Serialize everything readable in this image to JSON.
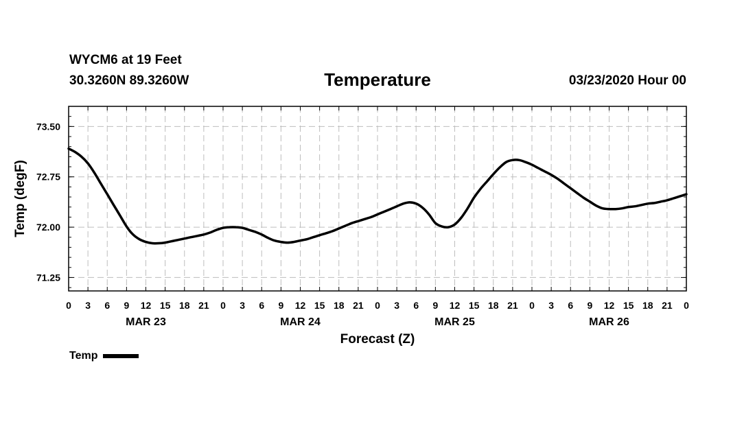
{
  "header": {
    "station": "WYCM6 at 19 Feet",
    "coords": "30.3260N 89.3260W",
    "title": "Temperature",
    "run": "03/23/2020 Hour 00"
  },
  "chart_data": {
    "type": "line",
    "title": "Temperature",
    "xlabel": "Forecast (Z)",
    "ylabel": "Temp (degF)",
    "x_unit": "hours since 03/23/2020 00Z",
    "xlim": [
      0,
      96
    ],
    "ylim": [
      71.05,
      73.8
    ],
    "yticks": [
      71.25,
      72.0,
      72.75,
      73.5
    ],
    "ytick_labels": [
      "71.25",
      "72.00",
      "72.75",
      "73.50"
    ],
    "xtick_labels": [
      "0",
      "3",
      "6",
      "9",
      "12",
      "15",
      "18",
      "21",
      "0",
      "3",
      "6",
      "9",
      "12",
      "15",
      "18",
      "21",
      "0",
      "3",
      "6",
      "9",
      "12",
      "15",
      "18",
      "21",
      "0",
      "3",
      "6",
      "9",
      "12",
      "15",
      "18",
      "21",
      "0"
    ],
    "day_labels": [
      {
        "label": "MAR 23",
        "hour": 12
      },
      {
        "label": "MAR 24",
        "hour": 36
      },
      {
        "label": "MAR 25",
        "hour": 60
      },
      {
        "label": "MAR 26",
        "hour": 84
      }
    ],
    "grid": true,
    "legend_position": "bottom-left",
    "series": [
      {
        "name": "Temp",
        "color": "#000000",
        "x": [
          0,
          1,
          2,
          3,
          4,
          5,
          6,
          7,
          8,
          9,
          10,
          11,
          12,
          13,
          14,
          15,
          16,
          17,
          18,
          19,
          20,
          21,
          22,
          23,
          24,
          25,
          26,
          27,
          28,
          29,
          30,
          31,
          32,
          33,
          34,
          35,
          36,
          37,
          38,
          39,
          40,
          41,
          42,
          43,
          44,
          45,
          46,
          47,
          48,
          49,
          50,
          51,
          52,
          53,
          54,
          55,
          56,
          57,
          58,
          59,
          60,
          61,
          62,
          63,
          64,
          65,
          66,
          67,
          68,
          69,
          70,
          71,
          72,
          73,
          74,
          75,
          76,
          77,
          78,
          79,
          80,
          81,
          82,
          83,
          84,
          85,
          86,
          87,
          88,
          89,
          90,
          91,
          92,
          93,
          94,
          95,
          96
        ],
        "values": [
          73.17,
          73.12,
          73.05,
          72.95,
          72.81,
          72.65,
          72.49,
          72.33,
          72.17,
          72.01,
          71.89,
          71.82,
          71.78,
          71.76,
          71.76,
          71.77,
          71.79,
          71.81,
          71.83,
          71.85,
          71.87,
          71.89,
          71.92,
          71.96,
          71.99,
          72.0,
          72.0,
          71.99,
          71.96,
          71.93,
          71.89,
          71.84,
          71.8,
          71.78,
          71.77,
          71.78,
          71.8,
          71.82,
          71.85,
          71.88,
          71.91,
          71.94,
          71.98,
          72.02,
          72.06,
          72.09,
          72.12,
          72.15,
          72.19,
          72.23,
          72.27,
          72.31,
          72.35,
          72.37,
          72.35,
          72.29,
          72.19,
          72.06,
          72.01,
          72.0,
          72.04,
          72.14,
          72.28,
          72.44,
          72.57,
          72.68,
          72.79,
          72.89,
          72.97,
          73.0,
          73.0,
          72.97,
          72.93,
          72.88,
          72.83,
          72.78,
          72.72,
          72.65,
          72.58,
          72.51,
          72.44,
          72.38,
          72.32,
          72.28,
          72.27,
          72.27,
          72.28,
          72.3,
          72.31,
          72.33,
          72.35,
          72.36,
          72.38,
          72.4,
          72.43,
          72.46,
          72.49
        ]
      }
    ]
  }
}
